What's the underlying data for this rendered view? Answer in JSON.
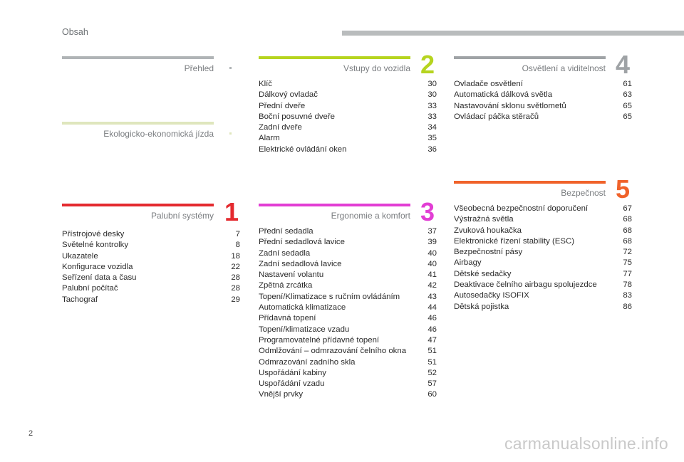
{
  "header": {
    "title": "Obsah"
  },
  "sections": {
    "prehled": {
      "title": "Přehled",
      "color": "#b0b4b6"
    },
    "eko": {
      "title": "Ekologicko-ekonomická jízda",
      "color": "#dfe6bd"
    },
    "s1": {
      "number": "1",
      "title": "Palubní systémy",
      "color": "#e42a2f",
      "items": [
        {
          "label": "Přístrojové desky",
          "page": "7"
        },
        {
          "label": "Světelné kontrolky",
          "page": "8"
        },
        {
          "label": "Ukazatele",
          "page": "18"
        },
        {
          "label": "Konfigurace vozidla",
          "page": "22"
        },
        {
          "label": "Seřízení data a času",
          "page": "28"
        },
        {
          "label": "Palubní počítač",
          "page": "28"
        },
        {
          "label": "Tachograf",
          "page": "29"
        }
      ]
    },
    "s2": {
      "number": "2",
      "title": "Vstupy do vozidla",
      "color": "#b6d41f",
      "items": [
        {
          "label": "Klíč",
          "page": "30"
        },
        {
          "label": "Dálkový ovladač",
          "page": "30"
        },
        {
          "label": "Přední dveře",
          "page": "33"
        },
        {
          "label": "Boční posuvné dveře",
          "page": "33"
        },
        {
          "label": "Zadní dveře",
          "page": "34"
        },
        {
          "label": "Alarm",
          "page": "35"
        },
        {
          "label": "Elektrické ovládání oken",
          "page": "36"
        }
      ]
    },
    "s3": {
      "number": "3",
      "title": "Ergonomie a komfort",
      "color": "#e23ed4",
      "items": [
        {
          "label": "Přední sedadla",
          "page": "37"
        },
        {
          "label": "Přední sedadlová lavice",
          "page": "39"
        },
        {
          "label": "Zadní sedadla",
          "page": "40"
        },
        {
          "label": "Zadní sedadlová lavice",
          "page": "40"
        },
        {
          "label": "Nastavení volantu",
          "page": "41"
        },
        {
          "label": "Zpětná zrcátka",
          "page": "42"
        },
        {
          "label": "Topení/Klimatizace s ručním ovládáním",
          "page": "43"
        },
        {
          "label": "Automatická klimatizace",
          "page": "44"
        },
        {
          "label": "Přídavná topení",
          "page": "46"
        },
        {
          "label": "Topení/klimatizace vzadu",
          "page": "46"
        },
        {
          "label": "Programovatelné přídavné topení",
          "page": "47"
        },
        {
          "label": "Odmlžování – odmrazování čelního okna",
          "page": "51"
        },
        {
          "label": "Odmrazování zadního skla",
          "page": "51"
        },
        {
          "label": "Uspořádání kabiny",
          "page": "52"
        },
        {
          "label": "Uspořádání vzadu",
          "page": "57"
        },
        {
          "label": "Vnější prvky",
          "page": "60"
        }
      ]
    },
    "s4": {
      "number": "4",
      "title": "Osvětlení a viditelnost",
      "color": "#9fa3a6",
      "items": [
        {
          "label": "Ovladače osvětlení",
          "page": "61"
        },
        {
          "label": "Automatická dálková světla",
          "page": "63"
        },
        {
          "label": "Nastavování sklonu světlometů",
          "page": "65"
        },
        {
          "label": "Ovládací páčka stěračů",
          "page": "65"
        }
      ]
    },
    "s5": {
      "number": "5",
      "title": "Bezpečnost",
      "color": "#f0622a",
      "items": [
        {
          "label": "Všeobecná bezpečnostní doporučení",
          "page": "67"
        },
        {
          "label": "Výstražná světla",
          "page": "68"
        },
        {
          "label": "Zvuková houkačka",
          "page": "68"
        },
        {
          "label": "Elektronické řízení stability (ESC)",
          "page": "68"
        },
        {
          "label": "Bezpečnostní pásy",
          "page": "72"
        },
        {
          "label": "Airbagy",
          "page": "75"
        },
        {
          "label": "Dětské sedačky",
          "page": "77"
        },
        {
          "label": "Deaktivace čelního airbagu spolujezdce",
          "page": "78"
        },
        {
          "label": "Autosedačky ISOFIX",
          "page": "83"
        },
        {
          "label": "Dětská pojistka",
          "page": "86"
        }
      ]
    }
  },
  "footer": {
    "page_number": "2",
    "watermark": "carmanualsonline.info"
  }
}
